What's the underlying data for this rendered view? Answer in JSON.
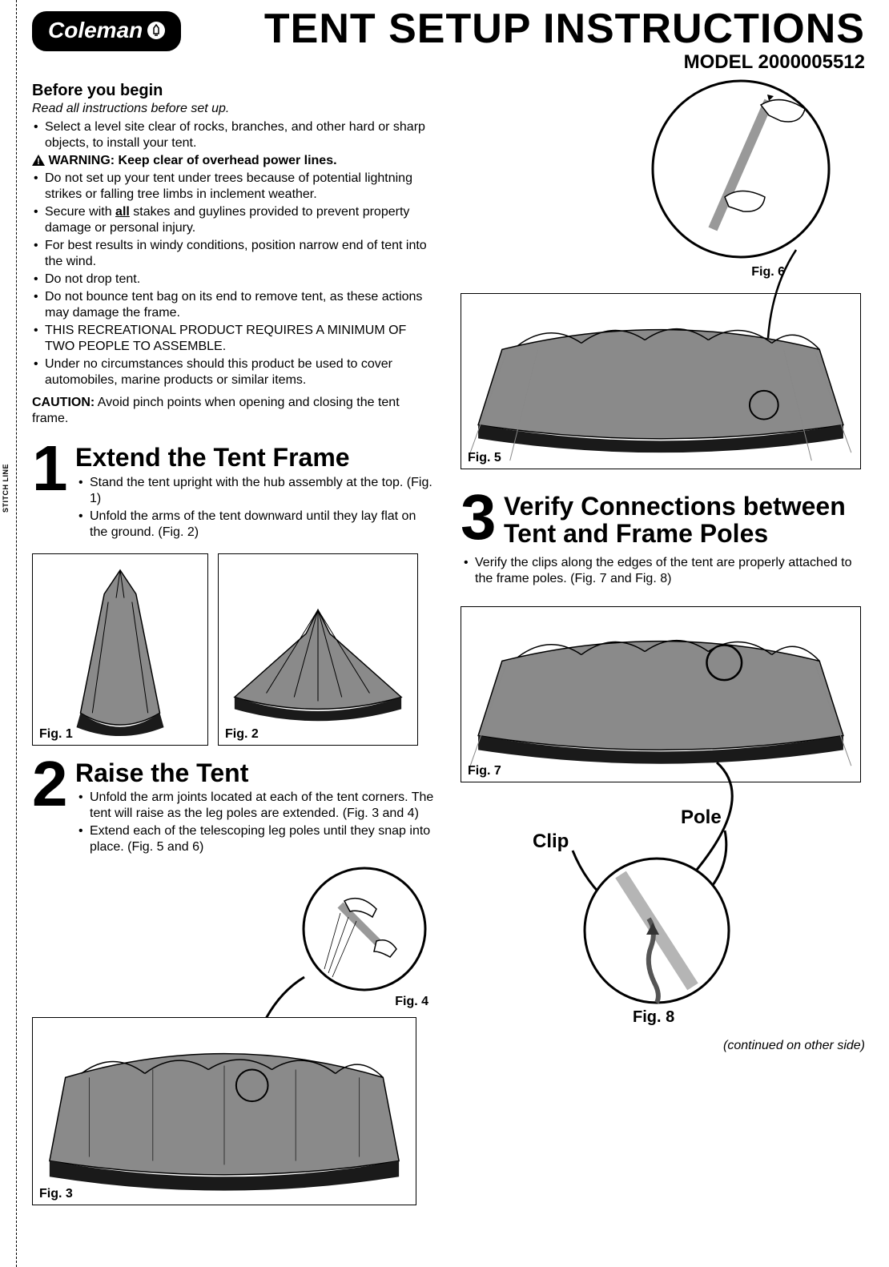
{
  "brand": "Coleman",
  "stitch": "STITCH LINE",
  "title": "TENT SETUP INSTRUCTIONS",
  "model": "MODEL 2000005512",
  "before": {
    "heading": "Before you begin",
    "intro": "Read all instructions before set up.",
    "items": [
      {
        "text": "Select a level site clear of rocks, branches, and other hard or sharp objects, to install your tent."
      },
      {
        "warning": true,
        "text": "WARNING: Keep clear of overhead power lines."
      },
      {
        "text": "Do not set up your tent under trees because of potential lightning strikes or falling tree limbs in inclement weather."
      },
      {
        "html": "Secure with <span class='bold underline'>all</span> stakes and guylines provided to prevent property damage or personal injury."
      },
      {
        "text": "For best results in windy conditions, position narrow end of tent into the wind."
      },
      {
        "text": "Do not drop tent."
      },
      {
        "text": "Do not bounce tent bag on its end to remove tent, as these actions may damage the frame."
      },
      {
        "text": "THIS RECREATIONAL PRODUCT REQUIRES A MINIMUM OF TWO PEOPLE TO ASSEMBLE."
      },
      {
        "text": "Under no circumstances should this product be used to cover automobiles, marine products or similar items."
      }
    ],
    "caution_label": "CAUTION:",
    "caution": " Avoid pinch points when opening and closing the tent frame."
  },
  "steps": {
    "s1": {
      "num": "1",
      "title": "Extend the Tent Frame",
      "items": [
        "Stand the tent upright with the hub assembly at the top. (Fig. 1)",
        "Unfold the arms of the tent downward until they lay flat on the ground. (Fig. 2)"
      ]
    },
    "s2": {
      "num": "2",
      "title": "Raise the Tent",
      "items": [
        "Unfold the arm joints located at each of the tent corners. The tent will raise as the leg poles are extended. (Fig. 3 and 4)",
        "Extend each of the telescoping leg poles until they snap into place. (Fig. 5 and 6)"
      ]
    },
    "s3": {
      "num": "3",
      "title": "Verify Connections between Tent and Frame Poles",
      "items": [
        "Verify the clips along the edges of the tent are properly attached to the frame poles. (Fig. 7 and Fig. 8)"
      ]
    }
  },
  "figs": {
    "f1": "Fig. 1",
    "f2": "Fig. 2",
    "f3": "Fig. 3",
    "f4": "Fig. 4",
    "f5": "Fig. 5",
    "f6": "Fig. 6",
    "f7": "Fig. 7",
    "f8": "Fig. 8"
  },
  "callouts": {
    "clip": "Clip",
    "pole": "Pole"
  },
  "continued": "(continued on other side)",
  "colors": {
    "tent_gray": "#8a8a8a",
    "tent_dark": "#1a1a1a",
    "line": "#000000"
  }
}
